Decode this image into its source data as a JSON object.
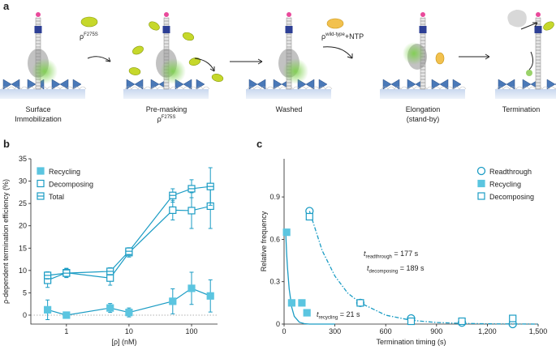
{
  "panel_a": {
    "label": "a",
    "stages": [
      {
        "lines": [
          "Surface",
          "Immobilization"
        ]
      },
      {
        "lines": [
          "Pre-masking"
        ],
        "rho": {
          "symbol": "ρ",
          "superscript": "F275S"
        }
      },
      {
        "lines": [
          "Washed"
        ]
      },
      {
        "lines": [
          "Elongation",
          "(stand-by)"
        ]
      },
      {
        "lines": [
          "Termination"
        ]
      }
    ],
    "reagents": [
      {
        "symbol": "ρ",
        "superscript": "F275S",
        "suffix": ""
      },
      {
        "symbol": "ρ",
        "superscript": "wild-type",
        "suffix": "+NTP"
      }
    ]
  },
  "chart_data": [
    {
      "type": "line",
      "panel_label": "b",
      "xscale": "log",
      "legend": "upper left",
      "xlabel": "[ρ] (nM)",
      "ylabel": "ρ-dependent termination efficiency (%)",
      "x": [
        0.5,
        1,
        5,
        10,
        50,
        100,
        200
      ],
      "xlim": [
        0.27,
        260
      ],
      "xticks": [
        1,
        10,
        100
      ],
      "ylim": [
        -2,
        35
      ],
      "yticks": [
        0,
        5,
        10,
        15,
        20,
        25,
        30,
        35
      ],
      "reference_line": 0,
      "series": [
        {
          "name": "Recycling",
          "marker": "square-filled",
          "color": "#1b9cc4",
          "fill": "#5bc5e0",
          "values": [
            1.2,
            0,
            1.6,
            0.6,
            3.1,
            6,
            4.3
          ],
          "errors": [
            2.2,
            0.5,
            1,
            1,
            2.8,
            3.6,
            3.6
          ]
        },
        {
          "name": "Decomposing",
          "marker": "square-open",
          "color": "#1b9cc4",
          "values": [
            7.8,
            9.5,
            8.3,
            14,
            23.5,
            23.4,
            24.4
          ],
          "errors": [
            1.6,
            1,
            1.6,
            1,
            2.2,
            4,
            5
          ]
        },
        {
          "name": "Total",
          "marker": "square-total",
          "color": "#1b9cc4",
          "values": [
            8.9,
            9.4,
            9.8,
            14.3,
            26.8,
            28.3,
            28.8
          ],
          "errors": [
            0.8,
            1,
            0.8,
            0.8,
            1.5,
            2,
            4.2
          ]
        }
      ]
    },
    {
      "type": "scatter",
      "panel_label": "c",
      "xscale": "linear",
      "legend": "upper right",
      "xlabel": "Termination timing (s)",
      "ylabel": "Relative frequency",
      "xlim": [
        0,
        1500
      ],
      "xticks": [
        0,
        300,
        600,
        900,
        {
          "value": 1200,
          "label": "1,200"
        },
        {
          "value": 1500,
          "label": "1,500"
        }
      ],
      "ylim": [
        0,
        1.17
      ],
      "yticks": [
        0,
        0.3,
        0.6,
        0.9
      ],
      "series": [
        {
          "name": "Readthrough",
          "marker": "circle-open",
          "color": "#1b9cc4",
          "x": [
            150,
            450,
            750,
            1050,
            1350
          ],
          "values": [
            0.8,
            0.15,
            0.04,
            0.01,
            0
          ],
          "fit": {
            "style": "dashdot",
            "x": [
              150,
              225,
              300,
              375,
              450,
              600,
              750,
              900,
              1050,
              1200,
              1350,
              1500
            ],
            "values": [
              0.8,
              0.52,
              0.34,
              0.22,
              0.15,
              0.063,
              0.027,
              0.011,
              0.005,
              0.002,
              0.001,
              0
            ]
          }
        },
        {
          "name": "Recycling",
          "marker": "square-filled",
          "color": "#1b9cc4",
          "fill": "#5bc5e0",
          "x": [
            15,
            45,
            105,
            135
          ],
          "values": [
            0.65,
            0.15,
            0.15,
            0.08
          ],
          "fit": {
            "style": "solid",
            "x": [
              10,
              15,
              20,
              30,
              45,
              60,
              90,
              120,
              150,
              300
            ],
            "values": [
              0.64,
              0.5,
              0.4,
              0.25,
              0.12,
              0.055,
              0.013,
              0.003,
              0,
              0
            ]
          }
        },
        {
          "name": "Decomposing",
          "marker": "square-open",
          "color": "#1b9cc4",
          "x": [
            150,
            450,
            750,
            1050,
            1350
          ],
          "values": [
            0.76,
            0.15,
            0.02,
            0.02,
            0.04
          ]
        }
      ],
      "annotations": [
        {
          "symbol": "t",
          "subscript": "readthrough",
          "text": " = 177 s"
        },
        {
          "symbol": "t",
          "subscript": "decomposing",
          "text": " = 189 s"
        },
        {
          "symbol": "t",
          "subscript": "recycling",
          "text": " = 21 s"
        }
      ]
    }
  ]
}
